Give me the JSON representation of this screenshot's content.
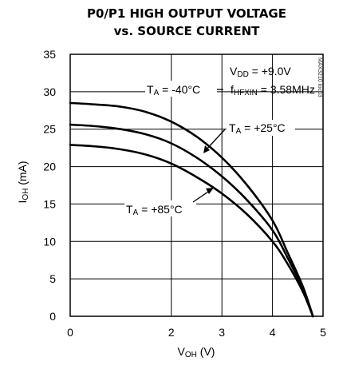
{
  "chart_data": {
    "type": "line",
    "title_line1": "P0/P1 HIGH OUTPUT VOLTAGE",
    "title_line2": "vs. SOURCE CURRENT",
    "xlabel": {
      "main": "V",
      "sub": "OH",
      "unit": " (V)"
    },
    "ylabel": {
      "main": "I",
      "sub": "OH",
      "unit": " (mA)"
    },
    "xlim": [
      0,
      5
    ],
    "ylim": [
      0,
      35
    ],
    "x_ticks": [
      0,
      2,
      3,
      4,
      5
    ],
    "y_ticks": [
      0,
      5,
      10,
      15,
      20,
      25,
      30,
      35
    ],
    "grid": true,
    "conditions": {
      "vdd": {
        "main": "V",
        "sub": "DD",
        "value": " = +9.0V"
      },
      "freq": {
        "main": "f",
        "sub": "HFXIN",
        "value": " = 3.58MHz"
      }
    },
    "watermark": "MAX3210 toc03",
    "series": [
      {
        "name": "T_A = -40°C",
        "label": {
          "main": "T",
          "sub": "A",
          "value": " = -40°C"
        },
        "points": [
          [
            0,
            28.5
          ],
          [
            0.5,
            28.3
          ],
          [
            1.0,
            28.0
          ],
          [
            1.5,
            27.3
          ],
          [
            2.0,
            26.0
          ],
          [
            2.5,
            24.0
          ],
          [
            3.0,
            21.2
          ],
          [
            3.5,
            17.5
          ],
          [
            4.0,
            12.8
          ],
          [
            4.3,
            8.5
          ],
          [
            4.6,
            4.0
          ],
          [
            4.8,
            0.0
          ]
        ]
      },
      {
        "name": "T_A = +25°C",
        "label": {
          "main": "T",
          "sub": "A",
          "value": " = +25°C"
        },
        "points": [
          [
            0,
            25.6
          ],
          [
            0.5,
            25.4
          ],
          [
            1.0,
            25.0
          ],
          [
            1.5,
            24.3
          ],
          [
            2.0,
            23.1
          ],
          [
            2.5,
            21.2
          ],
          [
            3.0,
            18.7
          ],
          [
            3.5,
            15.5
          ],
          [
            4.0,
            11.5
          ],
          [
            4.3,
            7.8
          ],
          [
            4.6,
            3.7
          ],
          [
            4.8,
            0.0
          ]
        ]
      },
      {
        "name": "T_A = +85°C",
        "label": {
          "main": "T",
          "sub": "A",
          "value": " = +85°C"
        },
        "points": [
          [
            0,
            22.9
          ],
          [
            0.5,
            22.7
          ],
          [
            1.0,
            22.3
          ],
          [
            1.5,
            21.6
          ],
          [
            2.0,
            20.4
          ],
          [
            2.5,
            18.6
          ],
          [
            3.0,
            16.4
          ],
          [
            3.5,
            13.6
          ],
          [
            4.0,
            10.0
          ],
          [
            4.3,
            7.0
          ],
          [
            4.6,
            3.3
          ],
          [
            4.8,
            0.0
          ]
        ]
      }
    ]
  }
}
